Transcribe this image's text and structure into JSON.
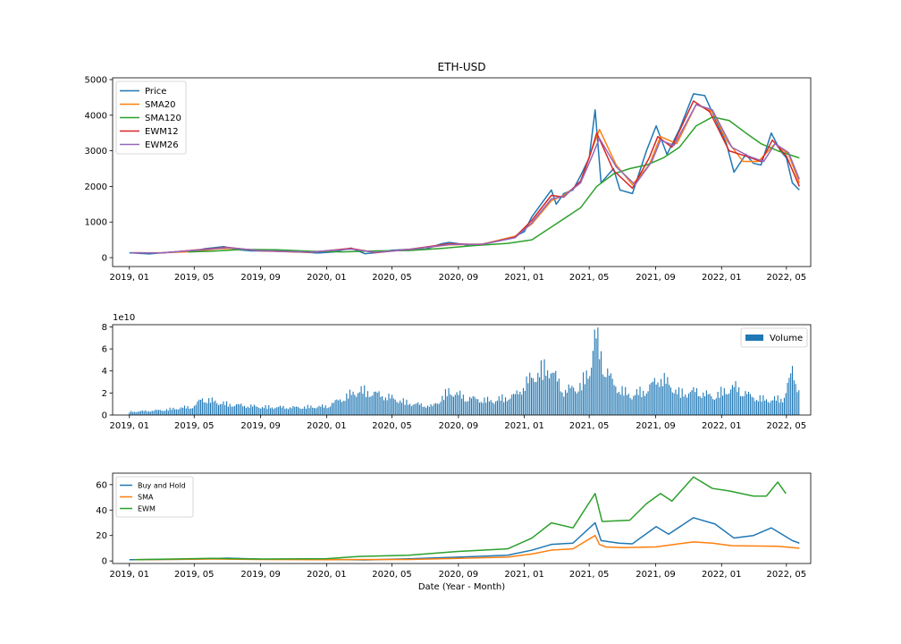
{
  "chart_data": [
    {
      "type": "line",
      "title": "ETH-USD",
      "xlabel": "",
      "ylabel": "",
      "x_ticks": [
        "2019, 01",
        "2019, 05",
        "2019, 09",
        "2020, 01",
        "2020, 05",
        "2020, 09",
        "2021, 01",
        "2021, 05",
        "2021, 09",
        "2022, 01",
        "2022, 05"
      ],
      "x_range": [
        "2018-12-01",
        "2022-06-15"
      ],
      "ylim": [
        -250,
        5050
      ],
      "y_ticks": [
        0,
        1000,
        2000,
        3000,
        4000,
        5000
      ],
      "legend_position": "upper-left",
      "series": [
        {
          "name": "Price",
          "color": "#1f77b4",
          "x": [
            "2019-01-01",
            "2019-02-07",
            "2019-03-01",
            "2019-04-01",
            "2019-05-01",
            "2019-05-20",
            "2019-06-25",
            "2019-07-15",
            "2019-08-15",
            "2019-09-15",
            "2019-10-15",
            "2019-11-15",
            "2019-12-15",
            "2020-01-15",
            "2020-02-15",
            "2020-03-12",
            "2020-04-01",
            "2020-05-01",
            "2020-06-01",
            "2020-07-01",
            "2020-08-01",
            "2020-08-15",
            "2020-09-15",
            "2020-10-15",
            "2020-11-15",
            "2020-12-15",
            "2021-01-01",
            "2021-01-15",
            "2021-02-20",
            "2021-03-01",
            "2021-03-15",
            "2021-04-01",
            "2021-04-15",
            "2021-05-01",
            "2021-05-12",
            "2021-05-23",
            "2021-06-15",
            "2021-06-27",
            "2021-07-20",
            "2021-08-15",
            "2021-09-02",
            "2021-09-22",
            "2021-10-15",
            "2021-11-10",
            "2021-12-01",
            "2021-12-20",
            "2022-01-10",
            "2022-01-24",
            "2022-02-15",
            "2022-03-01",
            "2022-03-15",
            "2022-04-03",
            "2022-04-20",
            "2022-05-01",
            "2022-05-12",
            "2022-05-25"
          ],
          "y": [
            135,
            105,
            135,
            165,
            170,
            250,
            310,
            230,
            190,
            190,
            180,
            160,
            130,
            160,
            270,
            110,
            140,
            210,
            235,
            230,
            390,
            430,
            360,
            380,
            470,
            600,
            730,
            1150,
            1900,
            1500,
            1800,
            1900,
            2300,
            2800,
            4150,
            2100,
            2500,
            1900,
            1800,
            3000,
            3700,
            2900,
            3600,
            4600,
            4550,
            3900,
            3200,
            2400,
            2900,
            2650,
            2600,
            3500,
            3000,
            2800,
            2100,
            1900
          ]
        },
        {
          "name": "SMA20",
          "color": "#ff7f0e",
          "x": [
            "2019-01-10",
            "2019-03-01",
            "2019-05-01",
            "2019-06-15",
            "2019-07-15",
            "2019-09-01",
            "2019-12-01",
            "2020-02-15",
            "2020-04-01",
            "2020-06-01",
            "2020-08-15",
            "2020-10-15",
            "2020-12-15",
            "2021-01-15",
            "2021-02-20",
            "2021-03-15",
            "2021-04-15",
            "2021-05-05",
            "2021-05-20",
            "2021-06-20",
            "2021-07-20",
            "2021-08-20",
            "2021-09-10",
            "2021-10-10",
            "2021-11-15",
            "2021-12-15",
            "2022-01-10",
            "2022-02-10",
            "2022-03-10",
            "2022-04-10",
            "2022-05-05",
            "2022-05-25"
          ],
          "y": [
            135,
            135,
            170,
            250,
            260,
            195,
            150,
            250,
            150,
            230,
            360,
            380,
            600,
            950,
            1600,
            1750,
            2100,
            3000,
            3600,
            2600,
            2050,
            2600,
            3400,
            3200,
            4300,
            4100,
            3300,
            2700,
            2700,
            3200,
            2900,
            2100
          ]
        },
        {
          "name": "SMA120",
          "color": "#2ca02c",
          "x": [
            "2019-04-20",
            "2019-06-01",
            "2019-08-01",
            "2019-10-01",
            "2019-12-01",
            "2020-02-01",
            "2020-04-01",
            "2020-06-01",
            "2020-08-01",
            "2020-10-01",
            "2020-12-01",
            "2021-01-15",
            "2021-03-01",
            "2021-04-15",
            "2021-05-15",
            "2021-06-15",
            "2021-07-15",
            "2021-08-15",
            "2021-09-15",
            "2021-10-15",
            "2021-11-15",
            "2021-12-15",
            "2022-01-15",
            "2022-02-15",
            "2022-03-15",
            "2022-04-15",
            "2022-05-25"
          ],
          "y": [
            160,
            180,
            230,
            220,
            180,
            160,
            190,
            200,
            260,
            340,
            400,
            500,
            950,
            1400,
            2000,
            2350,
            2500,
            2600,
            2800,
            3100,
            3700,
            3950,
            3850,
            3500,
            3200,
            3000,
            2800
          ]
        },
        {
          "name": "EWM12",
          "color": "#d62728",
          "x": [
            "2019-01-05",
            "2019-03-01",
            "2019-05-15",
            "2019-07-01",
            "2019-09-01",
            "2019-12-01",
            "2020-02-15",
            "2020-04-01",
            "2020-06-01",
            "2020-08-15",
            "2020-10-15",
            "2020-12-15",
            "2021-01-15",
            "2021-02-20",
            "2021-03-15",
            "2021-04-15",
            "2021-05-03",
            "2021-05-15",
            "2021-06-15",
            "2021-07-20",
            "2021-08-20",
            "2021-09-05",
            "2021-10-01",
            "2021-11-10",
            "2021-12-10",
            "2022-01-15",
            "2022-02-15",
            "2022-03-15",
            "2022-04-05",
            "2022-05-01",
            "2022-05-25"
          ],
          "y": [
            135,
            130,
            230,
            290,
            190,
            150,
            260,
            140,
            230,
            390,
            370,
            580,
            1050,
            1750,
            1700,
            2150,
            2900,
            3500,
            2450,
            1950,
            2800,
            3400,
            3100,
            4400,
            4100,
            3000,
            2850,
            2700,
            3300,
            2850,
            2000
          ]
        },
        {
          "name": "EWM26",
          "color": "#9467bd",
          "x": [
            "2019-01-05",
            "2019-03-01",
            "2019-05-15",
            "2019-07-01",
            "2019-09-01",
            "2019-12-01",
            "2020-02-15",
            "2020-04-01",
            "2020-06-01",
            "2020-08-15",
            "2020-10-15",
            "2020-12-15",
            "2021-01-15",
            "2021-02-20",
            "2021-03-15",
            "2021-04-15",
            "2021-05-05",
            "2021-05-20",
            "2021-06-20",
            "2021-07-25",
            "2021-08-25",
            "2021-09-10",
            "2021-10-05",
            "2021-11-15",
            "2021-12-15",
            "2022-01-20",
            "2022-02-20",
            "2022-03-20",
            "2022-04-10",
            "2022-05-05",
            "2022-05-25"
          ],
          "y": [
            135,
            132,
            220,
            280,
            195,
            155,
            240,
            150,
            225,
            370,
            375,
            560,
            980,
            1650,
            1720,
            2100,
            2800,
            3350,
            2550,
            2050,
            2700,
            3300,
            3150,
            4300,
            4150,
            3100,
            2850,
            2700,
            3200,
            2950,
            2200
          ]
        }
      ]
    },
    {
      "type": "bar",
      "title": "",
      "offset_text": "1e10",
      "x_ticks": [
        "2019, 01",
        "2019, 05",
        "2019, 09",
        "2020, 01",
        "2020, 05",
        "2020, 09",
        "2021, 01",
        "2021, 05",
        "2021, 09",
        "2022, 01",
        "2022, 05"
      ],
      "x_range": [
        "2018-12-01",
        "2022-06-15"
      ],
      "ylim": [
        0,
        8.2
      ],
      "y_ticks": [
        0,
        2,
        4,
        6,
        8
      ],
      "legend_position": "upper-right",
      "series": [
        {
          "name": "Volume",
          "color": "#1f77b4",
          "x": [
            "2019-01-01",
            "2019-03-01",
            "2019-05-01",
            "2019-05-15",
            "2019-07-01",
            "2019-09-01",
            "2019-11-01",
            "2020-01-01",
            "2020-03-01",
            "2020-04-15",
            "2020-06-01",
            "2020-07-15",
            "2020-08-15",
            "2020-09-15",
            "2020-11-01",
            "2020-12-15",
            "2021-01-15",
            "2021-02-15",
            "2021-03-15",
            "2021-04-15",
            "2021-05-01",
            "2021-05-12",
            "2021-05-25",
            "2021-06-15",
            "2021-07-15",
            "2021-08-15",
            "2021-09-10",
            "2021-10-15",
            "2021-11-15",
            "2021-12-15",
            "2022-01-25",
            "2022-02-25",
            "2022-03-25",
            "2022-04-25",
            "2022-05-12",
            "2022-05-25"
          ],
          "y": [
            0.3,
            0.45,
            0.8,
            1.5,
            1.0,
            0.75,
            0.7,
            0.8,
            2.3,
            1.8,
            1.1,
            0.8,
            2.2,
            1.6,
            1.3,
            1.8,
            3.5,
            4.5,
            2.2,
            2.7,
            4.0,
            7.5,
            5.0,
            2.8,
            1.8,
            2.3,
            3.5,
            2.0,
            2.2,
            1.7,
            2.6,
            1.7,
            1.4,
            1.5,
            4.0,
            2.2
          ]
        }
      ]
    },
    {
      "type": "line",
      "title": "",
      "xlabel": "Date (Year - Month)",
      "x_ticks": [
        "2019, 01",
        "2019, 05",
        "2019, 09",
        "2020, 01",
        "2020, 05",
        "2020, 09",
        "2021, 01",
        "2021, 05",
        "2021, 09",
        "2022, 01",
        "2022, 05"
      ],
      "x_range": [
        "2018-12-01",
        "2022-06-15"
      ],
      "ylim": [
        -2,
        69
      ],
      "y_ticks": [
        0,
        20,
        40,
        60
      ],
      "legend_position": "upper-left",
      "series": [
        {
          "name": "Buy and Hold",
          "color": "#1f77b4",
          "x": [
            "2019-01-01",
            "2019-05-01",
            "2019-07-01",
            "2019-09-01",
            "2020-01-01",
            "2020-03-12",
            "2020-06-01",
            "2020-09-01",
            "2020-12-01",
            "2021-01-15",
            "2021-02-20",
            "2021-04-01",
            "2021-05-12",
            "2021-05-23",
            "2021-06-25",
            "2021-07-20",
            "2021-09-02",
            "2021-09-25",
            "2021-11-10",
            "2021-12-20",
            "2022-01-24",
            "2022-03-01",
            "2022-04-03",
            "2022-05-12",
            "2022-05-25"
          ],
          "y": [
            1.0,
            1.3,
            2.2,
            1.4,
            1.2,
            0.8,
            1.7,
            3.0,
            4.5,
            8.5,
            13,
            14,
            30,
            16,
            14,
            13.5,
            27,
            21,
            34,
            29,
            18,
            20,
            26,
            16,
            14
          ]
        },
        {
          "name": "SMA",
          "color": "#ff7f0e",
          "x": [
            "2019-01-10",
            "2019-06-01",
            "2019-09-01",
            "2020-01-01",
            "2020-06-01",
            "2020-09-01",
            "2020-12-01",
            "2021-01-15",
            "2021-02-20",
            "2021-04-01",
            "2021-05-12",
            "2021-05-20",
            "2021-06-01",
            "2021-07-01",
            "2021-09-01",
            "2021-11-10",
            "2021-12-15",
            "2022-01-20",
            "2022-04-15",
            "2022-05-25"
          ],
          "y": [
            1.0,
            1.5,
            1.2,
            1.0,
            1.2,
            2.0,
            3.0,
            5.5,
            8.5,
            9.5,
            20,
            13,
            11,
            10.5,
            11,
            15,
            14,
            12,
            11.5,
            10
          ]
        },
        {
          "name": "EWM",
          "color": "#2ca02c",
          "x": [
            "2019-01-10",
            "2019-06-01",
            "2019-09-01",
            "2020-01-01",
            "2020-03-01",
            "2020-06-01",
            "2020-09-01",
            "2020-12-01",
            "2021-01-15",
            "2021-02-20",
            "2021-04-01",
            "2021-05-12",
            "2021-05-25",
            "2021-07-15",
            "2021-08-15",
            "2021-09-10",
            "2021-10-01",
            "2021-11-10",
            "2021-12-15",
            "2022-01-15",
            "2022-03-01",
            "2022-03-25",
            "2022-04-15",
            "2022-04-30"
          ],
          "y": [
            1.0,
            2.0,
            1.5,
            1.8,
            3.5,
            4.5,
            7.5,
            9.5,
            18,
            30,
            26,
            53,
            31,
            32,
            45,
            53,
            47,
            66,
            57,
            55,
            51,
            51,
            62,
            53
          ]
        }
      ]
    }
  ]
}
